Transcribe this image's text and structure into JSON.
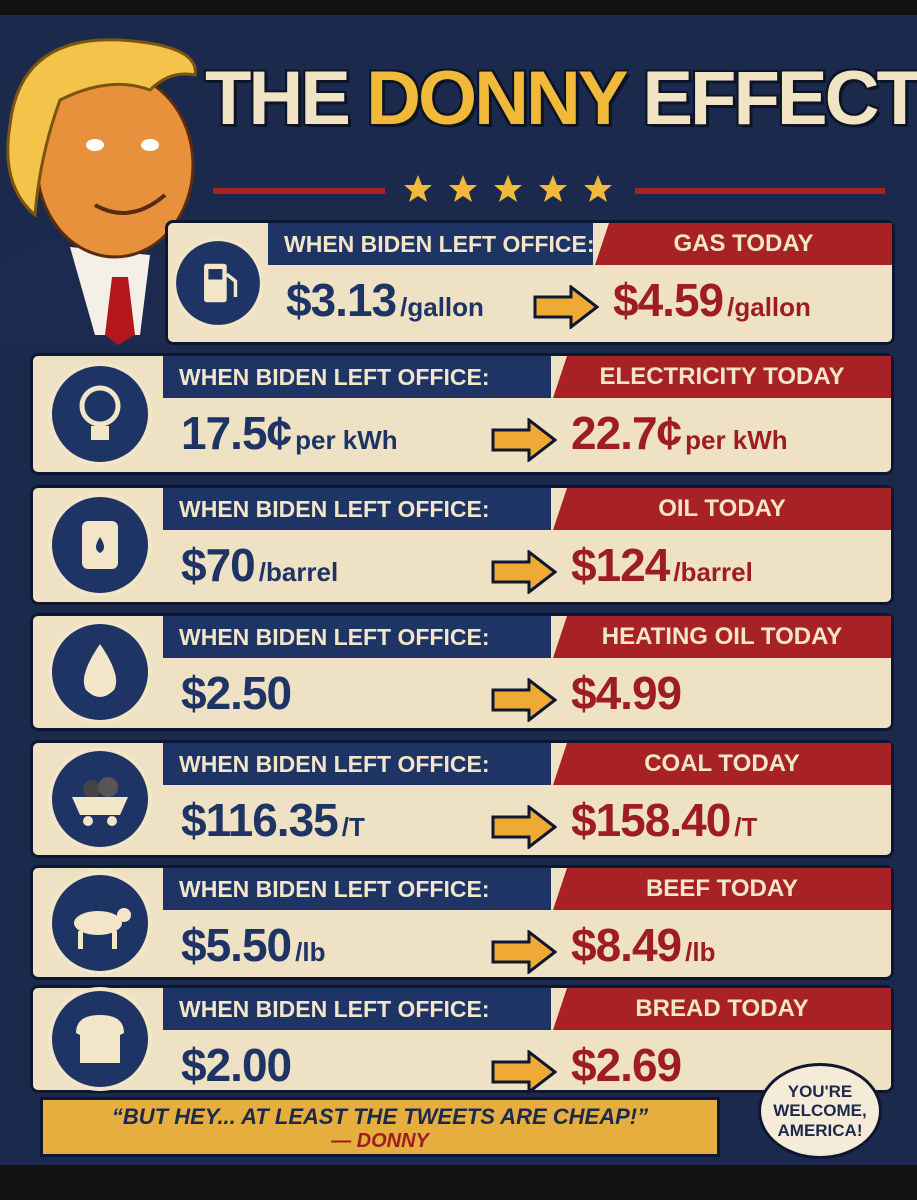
{
  "title": {
    "part1": "THE",
    "part2": "DONNY",
    "part3": "EFFECT!"
  },
  "rows": [
    {
      "before_label": "WHEN BIDEN LEFT OFFICE:",
      "before_value": "$3.13",
      "before_unit": "/gallon",
      "after_label": "GAS TODAY",
      "after_value": "$4.59",
      "after_unit": "/gallon"
    },
    {
      "before_label": "WHEN BIDEN LEFT OFFICE:",
      "before_value": "17.5¢",
      "before_unit": "per kWh",
      "after_label": "ELECTRICITY TODAY",
      "after_value": "22.7¢",
      "after_unit": "per kWh"
    },
    {
      "before_label": "WHEN BIDEN LEFT OFFICE:",
      "before_value": "$70",
      "before_unit": "/barrel",
      "after_label": "OIL TODAY",
      "after_value": "$124",
      "after_unit": "/barrel"
    },
    {
      "before_label": "WHEN BIDEN LEFT OFFICE:",
      "before_value": "$2.50",
      "after_label": "HEATING OIL TODAY",
      "after_value": "$4.99"
    },
    {
      "before_label": "WHEN BIDEN LEFT OFFICE:",
      "before_value": "$116.35",
      "before_unit": "/T",
      "after_label": "COAL TODAY",
      "after_value": "$158.40",
      "after_unit": "/T"
    },
    {
      "before_label": "WHEN BIDEN LEFT OFFICE:",
      "before_value": "$5.50",
      "before_unit": "/lb",
      "after_label": "BEEF TODAY",
      "after_value": "$8.49",
      "after_unit": "/lb"
    },
    {
      "before_label": "WHEN BIDEN LEFT OFFICE:",
      "before_value": "$2.00",
      "after_label": "BREAD TODAY",
      "after_value": "$2.69"
    }
  ],
  "quote": {
    "text": "“BUT HEY... AT LEAST THE TWEETS ARE CHEAP!”",
    "attribution": "— DONNY"
  },
  "bubble": {
    "text": "YOU'RE WELCOME, AMERICA!"
  }
}
